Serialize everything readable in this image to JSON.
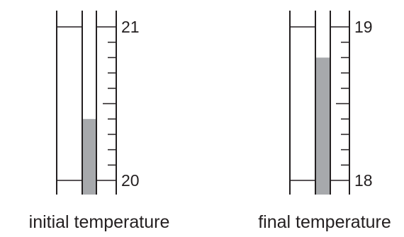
{
  "thermometers": [
    {
      "name": "initial",
      "caption": "initial temperature",
      "scale_min": 20,
      "scale_max": 21,
      "top_label": "21",
      "bottom_label": "20",
      "reading": 20.4,
      "minor_divisions": 10,
      "fill_color": "#a7a9ac"
    },
    {
      "name": "final",
      "caption": "final temperature",
      "scale_min": 18,
      "scale_max": 19,
      "top_label": "19",
      "bottom_label": "18",
      "reading": 18.8,
      "minor_divisions": 10,
      "fill_color": "#a7a9ac"
    }
  ],
  "line_color": "#231f20"
}
